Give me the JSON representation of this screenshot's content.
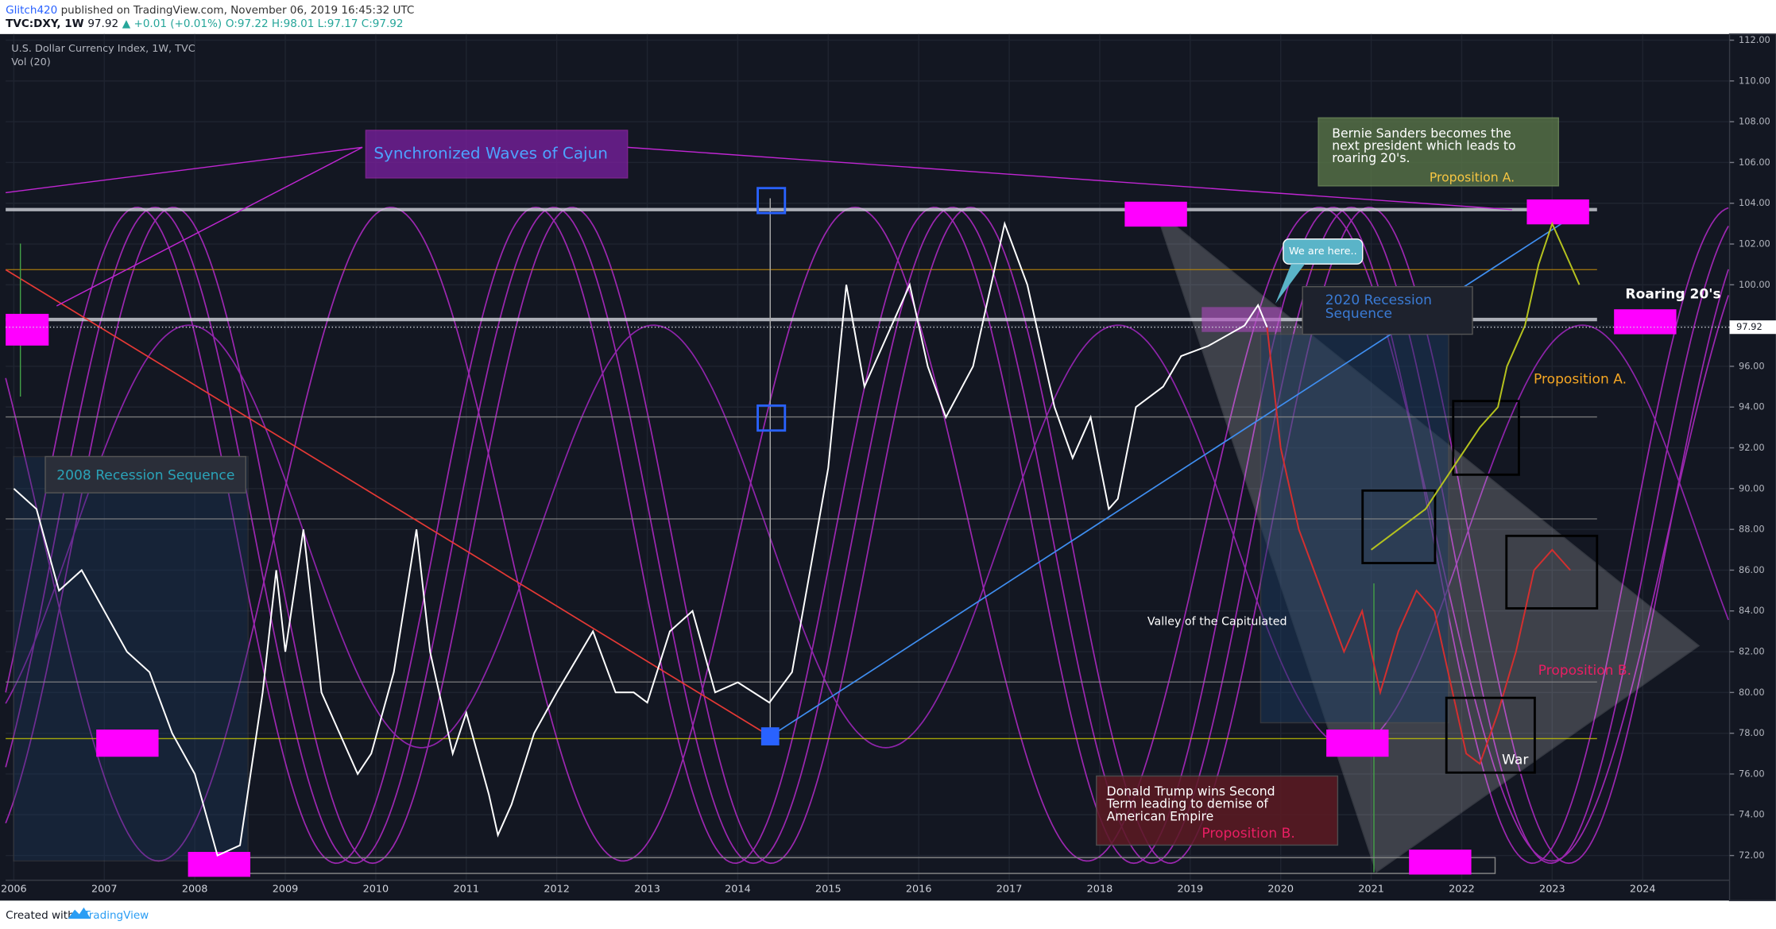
{
  "header": {
    "author": "Glitch420",
    "published": "published on TradingView.com, November 06, 2019 16:45:32 UTC",
    "symbol": "TVC:DXY, 1W",
    "price": "97.92",
    "change": "▲ +0.01 (+0.01%)",
    "ohlc": "O:97.22 H:98.01 L:97.17 C:97.92",
    "instrument": "U.S. Dollar Currency Index, 1W, TVC",
    "indicator": "Vol (20)"
  },
  "footer": {
    "created_with": "Created with",
    "brand": "TradingView"
  },
  "chart_data": {
    "type": "line",
    "grid": true,
    "xlim": [
      2005.91,
      2024.96
    ],
    "ylim": [
      69.9,
      112.3
    ],
    "xticks": [
      2006,
      2007,
      2008,
      2009,
      2010,
      2011,
      2012,
      2013,
      2014,
      2015,
      2016,
      2017,
      2018,
      2019,
      2020,
      2021,
      2022,
      2023,
      2024
    ],
    "yticks": [
      {
        "value": 72,
        "label": "72.00"
      },
      {
        "value": 74,
        "label": "74.00"
      },
      {
        "value": 76,
        "label": "76.00"
      },
      {
        "value": 78,
        "label": "78.00"
      },
      {
        "value": 80,
        "label": "80.00"
      },
      {
        "value": 82,
        "label": "82.00"
      },
      {
        "value": 84,
        "label": "84.00"
      },
      {
        "value": 86,
        "label": "86.00"
      },
      {
        "value": 88,
        "label": "88.00"
      },
      {
        "value": 90,
        "label": "90.00"
      },
      {
        "value": 92,
        "label": "92.00"
      },
      {
        "value": 94,
        "label": "94.00"
      },
      {
        "value": 96,
        "label": "96.00"
      },
      {
        "value": 98,
        "label": "98.00"
      },
      {
        "value": 100,
        "label": "100.00"
      },
      {
        "value": 102,
        "label": "102.00"
      },
      {
        "value": 104,
        "label": "104.00"
      },
      {
        "value": 106,
        "label": "106.00"
      },
      {
        "value": 108,
        "label": "108.00"
      },
      {
        "value": 110,
        "label": "110.00"
      },
      {
        "value": 112,
        "label": "112.00"
      }
    ],
    "last_price": 97.92,
    "series": [
      {
        "color": "#ffffff",
        "x": [
          2006.0,
          2006.25,
          2006.5,
          2006.75,
          2007.0,
          2007.25,
          2007.5,
          2007.75,
          2008.0,
          2008.25,
          2008.5,
          2008.75,
          2008.9,
          2009.0,
          2009.2,
          2009.4,
          2009.6,
          2009.8,
          2009.95,
          2010.2,
          2010.45,
          2010.6,
          2010.85,
          2011.0,
          2011.25,
          2011.35,
          2011.5,
          2011.75,
          2012.0,
          2012.4,
          2012.65,
          2012.85,
          2013.0,
          2013.25,
          2013.5,
          2013.75,
          2014.0,
          2014.35,
          2014.6,
          2014.8,
          2015.0,
          2015.2,
          2015.4,
          2015.6,
          2015.9,
          2016.1,
          2016.3,
          2016.6,
          2016.95,
          2017.2,
          2017.5,
          2017.7,
          2017.9,
          2018.1,
          2018.2,
          2018.4,
          2018.7,
          2018.9,
          2019.2,
          2019.4,
          2019.6,
          2019.75,
          2019.85
        ],
        "values": [
          90,
          89,
          85,
          86,
          84,
          82,
          81,
          78,
          76,
          72,
          72.5,
          80,
          86,
          82,
          88,
          80,
          78,
          76,
          77,
          81,
          88,
          82,
          77,
          79,
          75,
          73,
          74.5,
          78,
          80,
          83,
          80,
          80,
          79.5,
          83,
          84,
          80,
          80.5,
          79.5,
          81,
          86,
          91,
          100,
          95,
          97,
          100,
          96,
          93.5,
          96,
          103,
          100,
          94,
          91.5,
          93.5,
          89,
          89.5,
          94,
          95,
          96.5,
          97,
          97.5,
          98,
          99,
          97.92
        ]
      },
      {
        "color": "#d32f2f",
        "x": [
          2019.85,
          2020.0,
          2020.2,
          2020.45,
          2020.7,
          2020.9,
          2021.1,
          2021.3,
          2021.5,
          2021.7,
          2021.9,
          2022.05,
          2022.2,
          2022.4,
          2022.6,
          2022.8,
          2023.0,
          2023.2
        ],
        "values": [
          97.9,
          92,
          88,
          85,
          82,
          84,
          80,
          83,
          85,
          84,
          80,
          77,
          76.5,
          79,
          82,
          86,
          87,
          86
        ]
      },
      {
        "color": "#b5c21e",
        "x": [
          2021.0,
          2021.3,
          2021.6,
          2021.9,
          2022.2,
          2022.4,
          2022.5,
          2022.7,
          2022.85,
          2023.0,
          2023.2,
          2023.3
        ],
        "values": [
          87,
          88,
          89,
          91,
          93,
          94,
          96,
          98,
          101,
          103,
          101,
          100
        ]
      }
    ]
  },
  "annotations": {
    "waves": "Synchronized Waves of Cajun",
    "bernie": [
      "Bernie Sanders becomes the",
      "next president which leads to",
      "roaring 20's."
    ],
    "prop_a_top": "Proposition A.",
    "prop_a_right": "Proposition A.",
    "we_are_here": "We are here..",
    "recession_2020": [
      "2020 Recession",
      "Sequence"
    ],
    "recession_2008": "2008 Recession Sequence",
    "roaring": "Roaring 20's",
    "valley": "Valley of the Capitulated",
    "prop_b_right": "Proposition B.",
    "war": "War",
    "trump": [
      "Donald Trump wins Second",
      "Term leading to demise of",
      "American Empire"
    ],
    "prop_b_bottom": "Proposition B."
  }
}
